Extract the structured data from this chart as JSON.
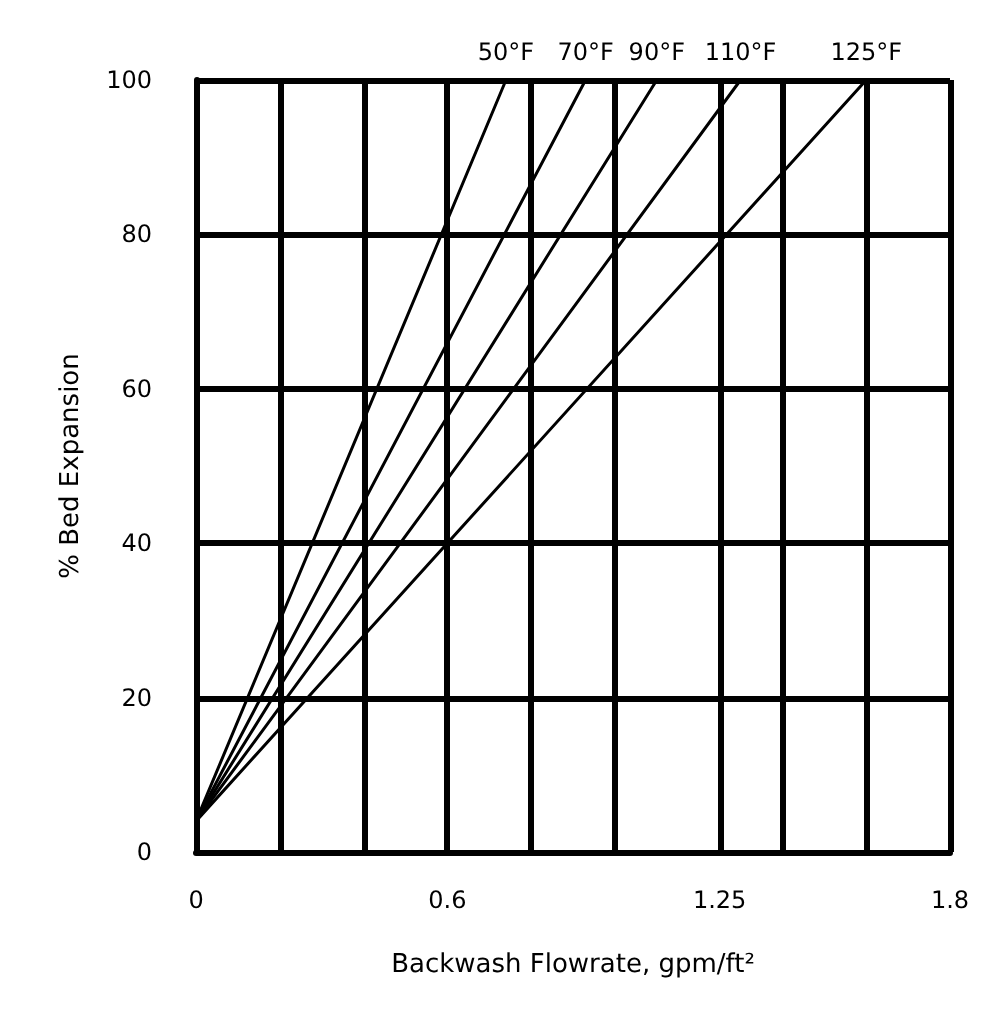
{
  "chart_data": {
    "type": "line",
    "xlabel": "Backwash Flowrate, gpm/ft²",
    "ylabel": "% Bed Expansion",
    "xlim": [
      0,
      1.8
    ],
    "xticks": [
      0,
      {
        "value": 0.2,
        "label": null
      },
      {
        "value": 0.4,
        "label": null
      },
      0.6,
      {
        "value": 0.8,
        "label": null
      },
      {
        "value": 1.0,
        "label": null
      },
      1.25,
      {
        "value": 1.4,
        "label": null
      },
      {
        "value": 1.6,
        "label": null
      },
      1.8
    ],
    "ylim": [
      0,
      100
    ],
    "yticks": [
      0,
      20,
      40,
      60,
      80,
      100
    ],
    "grid": true,
    "legend": false,
    "marker": "none",
    "line_style": "solid",
    "series": [
      {
        "name": "50°F",
        "color": "#000000",
        "x": [
          0,
          0.74
        ],
        "values": [
          4,
          100
        ]
      },
      {
        "name": "70°F",
        "color": "#000000",
        "x": [
          0,
          0.93
        ],
        "values": [
          4,
          100
        ]
      },
      {
        "name": "90°F",
        "color": "#000000",
        "x": [
          0,
          1.1
        ],
        "values": [
          4,
          100
        ]
      },
      {
        "name": "110°F",
        "color": "#000000",
        "x": [
          0,
          1.3
        ],
        "values": [
          4,
          100
        ]
      },
      {
        "name": "125°F",
        "color": "#000000",
        "x": [
          0,
          1.6
        ],
        "values": [
          4,
          100
        ]
      }
    ]
  }
}
